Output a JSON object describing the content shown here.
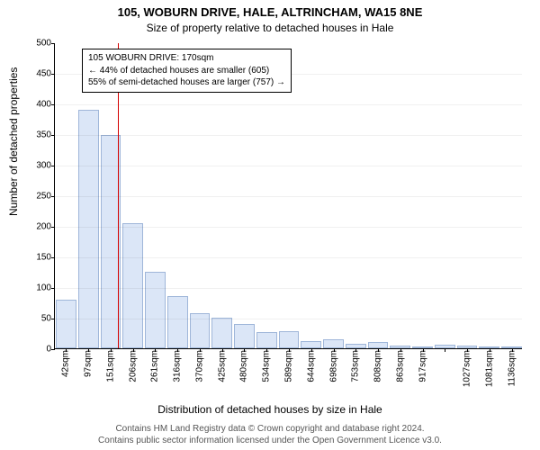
{
  "title": "105, WOBURN DRIVE, HALE, ALTRINCHAM, WA15 8NE",
  "subtitle": "Size of property relative to detached houses in Hale",
  "ylabel": "Number of detached properties",
  "xlabel": "Distribution of detached houses by size in Hale",
  "footer_line1": "Contains HM Land Registry data © Crown copyright and database right 2024.",
  "footer_line2": "Contains public sector information licensed under the Open Government Licence v3.0.",
  "callout": {
    "line1": "105 WOBURN DRIVE: 170sqm",
    "line2": "← 44% of detached houses are smaller (605)",
    "line3": "55% of semi-detached houses are larger (757) →"
  },
  "chart": {
    "type": "histogram",
    "ymax": 500,
    "ytick_step": 50,
    "bar_fill": "#dbe6f7",
    "bar_stroke": "#9fb6d9",
    "refline_color": "#d40000",
    "refline_value": 170,
    "background_color": "#ffffff",
    "xlabels": [
      "42sqm",
      "97sqm",
      "151sqm",
      "206sqm",
      "261sqm",
      "316sqm",
      "370sqm",
      "425sqm",
      "480sqm",
      "534sqm",
      "589sqm",
      "644sqm",
      "698sqm",
      "753sqm",
      "808sqm",
      "863sqm",
      "917sqm",
      "",
      "1027sqm",
      "1081sqm",
      "1136sqm"
    ],
    "values": [
      80,
      390,
      348,
      205,
      125,
      85,
      58,
      50,
      40,
      26,
      28,
      12,
      15,
      8,
      10,
      5,
      2,
      6,
      4,
      2,
      2
    ]
  }
}
